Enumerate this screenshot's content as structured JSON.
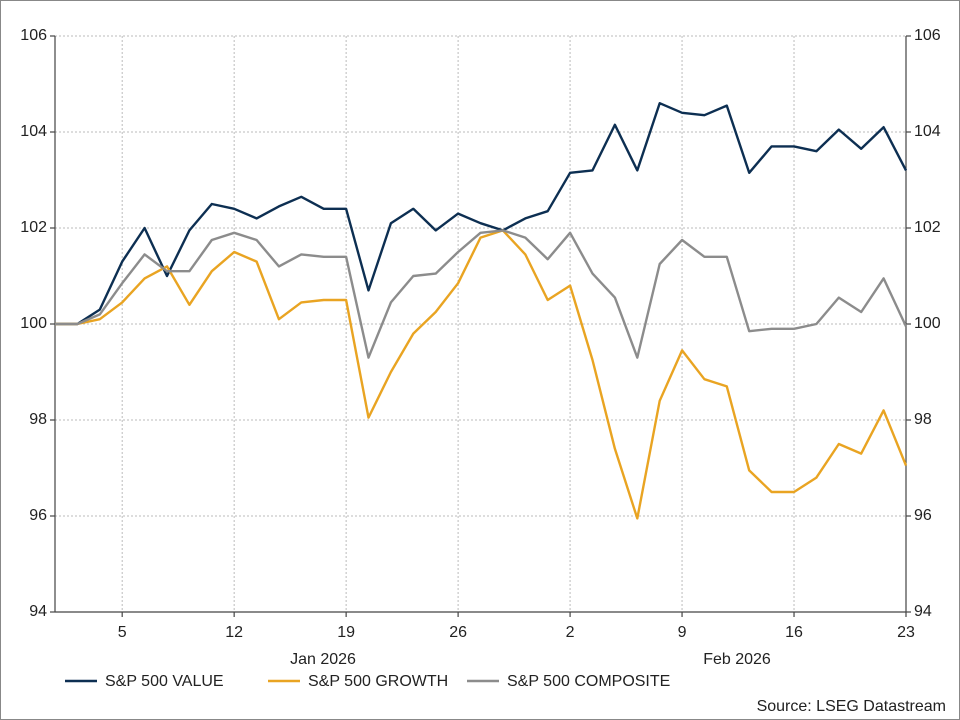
{
  "chart_data": {
    "type": "line",
    "categories": [
      null,
      null,
      null,
      "5",
      null,
      null,
      null,
      null,
      "12",
      null,
      null,
      null,
      null,
      "19",
      null,
      null,
      null,
      null,
      "26",
      null,
      null,
      null,
      null,
      "2",
      null,
      null,
      null,
      null,
      "9",
      null,
      null,
      null,
      null,
      "16",
      null,
      null,
      null,
      null,
      "23"
    ],
    "month_labels": [
      "Jan 2026",
      "Feb 2026"
    ],
    "series": [
      {
        "name": "S&P 500 VALUE",
        "color": "#0d2f52",
        "values": [
          100,
          100,
          100.3,
          101.3,
          102.0,
          101.0,
          101.95,
          102.5,
          102.4,
          102.2,
          102.45,
          102.65,
          102.4,
          102.4,
          100.7,
          102.1,
          102.4,
          101.95,
          102.3,
          102.1,
          101.95,
          102.2,
          102.35,
          103.15,
          103.2,
          104.15,
          103.2,
          104.6,
          104.4,
          104.35,
          104.55,
          103.15,
          103.7,
          103.7,
          103.6,
          104.05,
          103.65,
          104.1,
          103.2
        ]
      },
      {
        "name": "S&P 500 GROWTH",
        "color": "#e9a422",
        "values": [
          100,
          100,
          100.1,
          100.45,
          100.95,
          101.2,
          100.4,
          101.1,
          101.5,
          101.3,
          100.1,
          100.45,
          100.5,
          100.5,
          98.05,
          99.0,
          99.8,
          100.25,
          100.85,
          101.8,
          101.95,
          101.45,
          100.5,
          100.8,
          99.25,
          97.4,
          95.95,
          98.4,
          99.45,
          98.85,
          98.7,
          96.95,
          96.5,
          96.5,
          96.8,
          97.5,
          97.3,
          98.2,
          97.05
        ]
      },
      {
        "name": "S&P 500 COMPOSITE",
        "color": "#8c8c8c",
        "values": [
          100,
          100,
          100.2,
          100.85,
          101.45,
          101.1,
          101.1,
          101.75,
          101.9,
          101.75,
          101.2,
          101.45,
          101.4,
          101.4,
          99.3,
          100.45,
          101.0,
          101.05,
          101.5,
          101.9,
          101.95,
          101.8,
          101.35,
          101.9,
          101.05,
          100.55,
          99.3,
          101.25,
          101.75,
          101.4,
          101.4,
          99.85,
          99.9,
          99.9,
          100.0,
          100.55,
          100.25,
          100.95,
          99.95
        ]
      }
    ],
    "ylim": [
      94,
      106
    ],
    "yticks": [
      94,
      96,
      98,
      100,
      102,
      104,
      106
    ],
    "y2lim": [
      94,
      106
    ],
    "y2ticks": [
      94,
      96,
      98,
      100,
      102,
      104,
      106
    ],
    "grid": true,
    "legend": "bottom",
    "source": "Source: LSEG Datastream"
  }
}
